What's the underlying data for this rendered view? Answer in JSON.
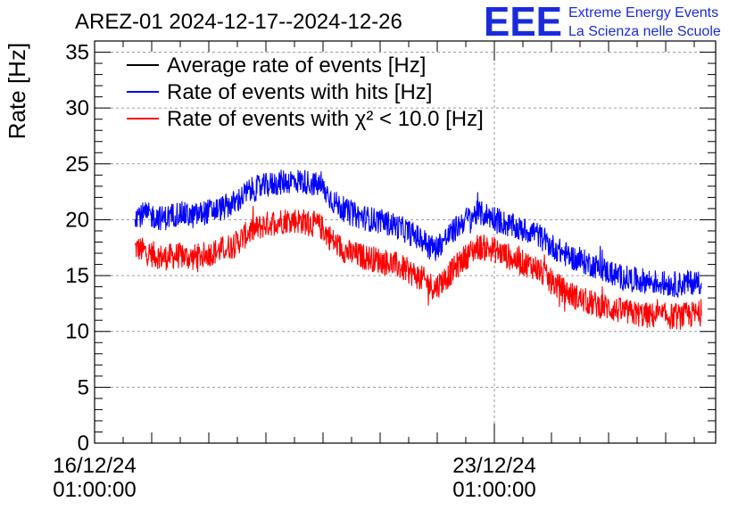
{
  "logo": {
    "mark": "EEE",
    "line1": "Extreme Energy Events",
    "line2": "La Scienza nelle Scuole",
    "color": "#1a2bdc"
  },
  "chart_data": {
    "type": "line",
    "title": "AREZ-01 2024-12-17--2024-12-26",
    "xlabel": "",
    "ylabel": "Rate [Hz]",
    "ylim": [
      0,
      36
    ],
    "yticks": [
      0,
      5,
      10,
      15,
      20,
      25,
      30,
      35
    ],
    "xlim": [
      "2024-12-16T01:00:00",
      "2024-12-26T22:00:00"
    ],
    "xticks": [
      {
        "date": "16/12/24",
        "time": "01:00:00"
      },
      {
        "date": "23/12/24",
        "time": "01:00:00"
      }
    ],
    "grid": true,
    "legend_position": "top-left",
    "series": [
      {
        "name": "Average rate of events [Hz]",
        "color": "#000000",
        "x": [],
        "y": []
      },
      {
        "name": "Rate of events with hits [Hz]",
        "color": "#0000ff",
        "x": [
          "2024-12-16T18:00",
          "2024-12-17T00:00",
          "2024-12-17T06:00",
          "2024-12-17T12:00",
          "2024-12-17T18:00",
          "2024-12-18T00:00",
          "2024-12-18T06:00",
          "2024-12-18T12:00",
          "2024-12-18T18:00",
          "2024-12-19T00:00",
          "2024-12-19T06:00",
          "2024-12-19T12:00",
          "2024-12-19T18:00",
          "2024-12-20T00:00",
          "2024-12-20T06:00",
          "2024-12-20T12:00",
          "2024-12-20T18:00",
          "2024-12-21T00:00",
          "2024-12-21T06:00",
          "2024-12-21T12:00",
          "2024-12-21T18:00",
          "2024-12-22T00:00",
          "2024-12-22T06:00",
          "2024-12-22T12:00",
          "2024-12-22T18:00",
          "2024-12-23T00:00",
          "2024-12-23T06:00",
          "2024-12-23T12:00",
          "2024-12-23T18:00",
          "2024-12-24T00:00",
          "2024-12-24T06:00",
          "2024-12-24T12:00",
          "2024-12-24T18:00",
          "2024-12-25T00:00",
          "2024-12-25T06:00",
          "2024-12-25T12:00",
          "2024-12-25T18:00",
          "2024-12-26T00:00",
          "2024-12-26T06:00",
          "2024-12-26T12:00",
          "2024-12-26T16:00"
        ],
        "y": [
          20.5,
          20.4,
          20.1,
          20.6,
          20.3,
          20.7,
          21.0,
          21.5,
          22.6,
          23.0,
          23.3,
          23.5,
          23.4,
          23.0,
          21.5,
          20.6,
          20.2,
          19.9,
          19.6,
          19.0,
          18.3,
          17.4,
          18.6,
          19.9,
          20.6,
          20.3,
          19.6,
          19.1,
          18.9,
          17.8,
          17.0,
          16.4,
          16.0,
          15.4,
          14.9,
          14.6,
          14.5,
          14.3,
          14.2,
          14.4,
          14.5
        ]
      },
      {
        "name": "Rate of events with χ² < 10.0 [Hz]",
        "color": "#ff0000",
        "x": [
          "2024-12-16T18:00",
          "2024-12-17T00:00",
          "2024-12-17T06:00",
          "2024-12-17T12:00",
          "2024-12-17T18:00",
          "2024-12-18T00:00",
          "2024-12-18T06:00",
          "2024-12-18T12:00",
          "2024-12-18T18:00",
          "2024-12-19T00:00",
          "2024-12-19T06:00",
          "2024-12-19T12:00",
          "2024-12-19T18:00",
          "2024-12-20T00:00",
          "2024-12-20T06:00",
          "2024-12-20T12:00",
          "2024-12-20T18:00",
          "2024-12-21T00:00",
          "2024-12-21T06:00",
          "2024-12-21T12:00",
          "2024-12-21T18:00",
          "2024-12-22T00:00",
          "2024-12-22T06:00",
          "2024-12-22T12:00",
          "2024-12-22T18:00",
          "2024-12-23T00:00",
          "2024-12-23T06:00",
          "2024-12-23T12:00",
          "2024-12-23T18:00",
          "2024-12-24T00:00",
          "2024-12-24T06:00",
          "2024-12-24T12:00",
          "2024-12-24T18:00",
          "2024-12-25T00:00",
          "2024-12-25T06:00",
          "2024-12-25T12:00",
          "2024-12-25T18:00",
          "2024-12-26T00:00",
          "2024-12-26T06:00",
          "2024-12-26T12:00",
          "2024-12-26T16:00"
        ],
        "y": [
          17.5,
          17.0,
          16.6,
          16.8,
          16.6,
          16.9,
          17.3,
          17.8,
          18.9,
          19.5,
          19.9,
          20.0,
          19.8,
          19.4,
          17.9,
          17.0,
          16.7,
          16.4,
          16.1,
          15.5,
          14.8,
          13.9,
          15.1,
          16.5,
          17.6,
          17.4,
          16.8,
          16.2,
          15.8,
          14.6,
          13.7,
          13.0,
          12.5,
          12.2,
          11.8,
          11.6,
          11.4,
          11.4,
          11.3,
          11.5,
          11.6
        ]
      }
    ]
  }
}
